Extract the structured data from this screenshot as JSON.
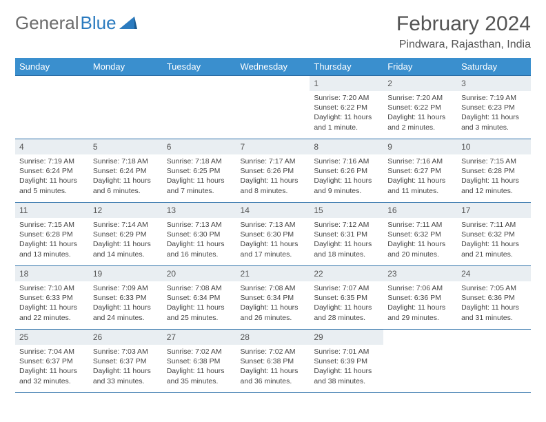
{
  "logo": {
    "part1": "General",
    "part2": "Blue"
  },
  "title": "February 2024",
  "location": "Pindwara, Rajasthan, India",
  "colors": {
    "header_bg": "#3a8fce",
    "header_text": "#ffffff",
    "border": "#2b6fa8",
    "daynum_bg": "#e9eef2",
    "logo_gray": "#6b6b6b",
    "logo_blue": "#2b7bbf"
  },
  "weekdays": [
    "Sunday",
    "Monday",
    "Tuesday",
    "Wednesday",
    "Thursday",
    "Friday",
    "Saturday"
  ],
  "weeks": [
    [
      {
        "n": "",
        "sr": "",
        "ss": "",
        "dl": ""
      },
      {
        "n": "",
        "sr": "",
        "ss": "",
        "dl": ""
      },
      {
        "n": "",
        "sr": "",
        "ss": "",
        "dl": ""
      },
      {
        "n": "",
        "sr": "",
        "ss": "",
        "dl": ""
      },
      {
        "n": "1",
        "sr": "Sunrise: 7:20 AM",
        "ss": "Sunset: 6:22 PM",
        "dl": "Daylight: 11 hours and 1 minute."
      },
      {
        "n": "2",
        "sr": "Sunrise: 7:20 AM",
        "ss": "Sunset: 6:22 PM",
        "dl": "Daylight: 11 hours and 2 minutes."
      },
      {
        "n": "3",
        "sr": "Sunrise: 7:19 AM",
        "ss": "Sunset: 6:23 PM",
        "dl": "Daylight: 11 hours and 3 minutes."
      }
    ],
    [
      {
        "n": "4",
        "sr": "Sunrise: 7:19 AM",
        "ss": "Sunset: 6:24 PM",
        "dl": "Daylight: 11 hours and 5 minutes."
      },
      {
        "n": "5",
        "sr": "Sunrise: 7:18 AM",
        "ss": "Sunset: 6:24 PM",
        "dl": "Daylight: 11 hours and 6 minutes."
      },
      {
        "n": "6",
        "sr": "Sunrise: 7:18 AM",
        "ss": "Sunset: 6:25 PM",
        "dl": "Daylight: 11 hours and 7 minutes."
      },
      {
        "n": "7",
        "sr": "Sunrise: 7:17 AM",
        "ss": "Sunset: 6:26 PM",
        "dl": "Daylight: 11 hours and 8 minutes."
      },
      {
        "n": "8",
        "sr": "Sunrise: 7:16 AM",
        "ss": "Sunset: 6:26 PM",
        "dl": "Daylight: 11 hours and 9 minutes."
      },
      {
        "n": "9",
        "sr": "Sunrise: 7:16 AM",
        "ss": "Sunset: 6:27 PM",
        "dl": "Daylight: 11 hours and 11 minutes."
      },
      {
        "n": "10",
        "sr": "Sunrise: 7:15 AM",
        "ss": "Sunset: 6:28 PM",
        "dl": "Daylight: 11 hours and 12 minutes."
      }
    ],
    [
      {
        "n": "11",
        "sr": "Sunrise: 7:15 AM",
        "ss": "Sunset: 6:28 PM",
        "dl": "Daylight: 11 hours and 13 minutes."
      },
      {
        "n": "12",
        "sr": "Sunrise: 7:14 AM",
        "ss": "Sunset: 6:29 PM",
        "dl": "Daylight: 11 hours and 14 minutes."
      },
      {
        "n": "13",
        "sr": "Sunrise: 7:13 AM",
        "ss": "Sunset: 6:30 PM",
        "dl": "Daylight: 11 hours and 16 minutes."
      },
      {
        "n": "14",
        "sr": "Sunrise: 7:13 AM",
        "ss": "Sunset: 6:30 PM",
        "dl": "Daylight: 11 hours and 17 minutes."
      },
      {
        "n": "15",
        "sr": "Sunrise: 7:12 AM",
        "ss": "Sunset: 6:31 PM",
        "dl": "Daylight: 11 hours and 18 minutes."
      },
      {
        "n": "16",
        "sr": "Sunrise: 7:11 AM",
        "ss": "Sunset: 6:32 PM",
        "dl": "Daylight: 11 hours and 20 minutes."
      },
      {
        "n": "17",
        "sr": "Sunrise: 7:11 AM",
        "ss": "Sunset: 6:32 PM",
        "dl": "Daylight: 11 hours and 21 minutes."
      }
    ],
    [
      {
        "n": "18",
        "sr": "Sunrise: 7:10 AM",
        "ss": "Sunset: 6:33 PM",
        "dl": "Daylight: 11 hours and 22 minutes."
      },
      {
        "n": "19",
        "sr": "Sunrise: 7:09 AM",
        "ss": "Sunset: 6:33 PM",
        "dl": "Daylight: 11 hours and 24 minutes."
      },
      {
        "n": "20",
        "sr": "Sunrise: 7:08 AM",
        "ss": "Sunset: 6:34 PM",
        "dl": "Daylight: 11 hours and 25 minutes."
      },
      {
        "n": "21",
        "sr": "Sunrise: 7:08 AM",
        "ss": "Sunset: 6:34 PM",
        "dl": "Daylight: 11 hours and 26 minutes."
      },
      {
        "n": "22",
        "sr": "Sunrise: 7:07 AM",
        "ss": "Sunset: 6:35 PM",
        "dl": "Daylight: 11 hours and 28 minutes."
      },
      {
        "n": "23",
        "sr": "Sunrise: 7:06 AM",
        "ss": "Sunset: 6:36 PM",
        "dl": "Daylight: 11 hours and 29 minutes."
      },
      {
        "n": "24",
        "sr": "Sunrise: 7:05 AM",
        "ss": "Sunset: 6:36 PM",
        "dl": "Daylight: 11 hours and 31 minutes."
      }
    ],
    [
      {
        "n": "25",
        "sr": "Sunrise: 7:04 AM",
        "ss": "Sunset: 6:37 PM",
        "dl": "Daylight: 11 hours and 32 minutes."
      },
      {
        "n": "26",
        "sr": "Sunrise: 7:03 AM",
        "ss": "Sunset: 6:37 PM",
        "dl": "Daylight: 11 hours and 33 minutes."
      },
      {
        "n": "27",
        "sr": "Sunrise: 7:02 AM",
        "ss": "Sunset: 6:38 PM",
        "dl": "Daylight: 11 hours and 35 minutes."
      },
      {
        "n": "28",
        "sr": "Sunrise: 7:02 AM",
        "ss": "Sunset: 6:38 PM",
        "dl": "Daylight: 11 hours and 36 minutes."
      },
      {
        "n": "29",
        "sr": "Sunrise: 7:01 AM",
        "ss": "Sunset: 6:39 PM",
        "dl": "Daylight: 11 hours and 38 minutes."
      },
      {
        "n": "",
        "sr": "",
        "ss": "",
        "dl": ""
      },
      {
        "n": "",
        "sr": "",
        "ss": "",
        "dl": ""
      }
    ]
  ]
}
